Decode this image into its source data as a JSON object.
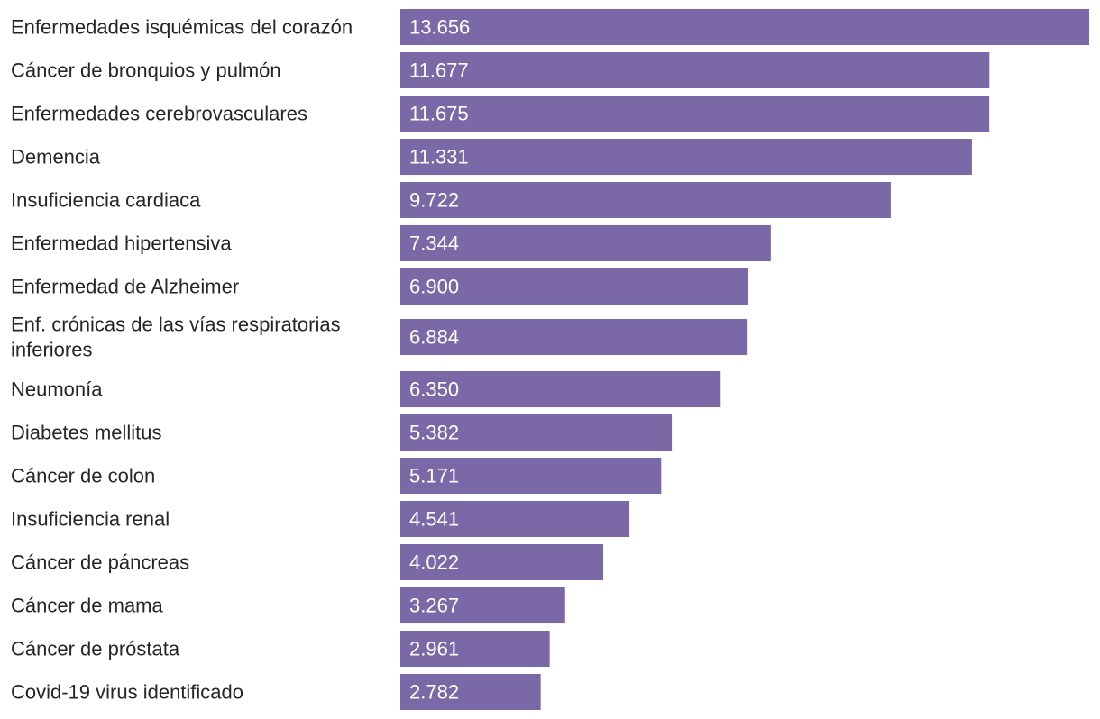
{
  "chart_data": {
    "type": "bar",
    "orientation": "horizontal",
    "categories": [
      "Enfermedades isquémicas del corazón",
      "Cáncer de bronquios y pulmón",
      "Enfermedades cerebrovasculares",
      "Demencia",
      "Insuficiencia cardiaca",
      "Enfermedad hipertensiva",
      "Enfermedad de Alzheimer",
      "Enf. crónicas de las vías respiratorias inferiores",
      "Neumonía",
      "Diabetes mellitus",
      "Cáncer de colon",
      "Insuficiencia renal",
      "Cáncer de páncreas",
      "Cáncer de mama",
      "Cáncer de próstata",
      "Covid-19 virus identificado"
    ],
    "category_lines": [
      [
        "Enfermedades isquémicas del corazón"
      ],
      [
        "Cáncer de bronquios y pulmón"
      ],
      [
        "Enfermedades cerebrovasculares"
      ],
      [
        "Demencia"
      ],
      [
        "Insuficiencia cardiaca"
      ],
      [
        "Enfermedad hipertensiva"
      ],
      [
        "Enfermedad de Alzheimer"
      ],
      [
        "Enf. crónicas de las vías respiratorias",
        "inferiores"
      ],
      [
        "Neumonía"
      ],
      [
        "Diabetes mellitus"
      ],
      [
        "Cáncer de colon"
      ],
      [
        "Insuficiencia renal"
      ],
      [
        "Cáncer de páncreas"
      ],
      [
        "Cáncer de mama"
      ],
      [
        "Cáncer de próstata"
      ],
      [
        "Covid-19 virus identificado"
      ]
    ],
    "values": [
      13656,
      11677,
      11675,
      11331,
      9722,
      7344,
      6900,
      6884,
      6350,
      5382,
      5171,
      4541,
      4022,
      3267,
      2961,
      2782
    ],
    "value_labels": [
      "13.656",
      "11.677",
      "11.675",
      "11.331",
      "9.722",
      "7.344",
      "6.900",
      "6.884",
      "6.350",
      "5.382",
      "5.171",
      "4.541",
      "4.022",
      "3.267",
      "2.961",
      "2.782"
    ],
    "xlim": [
      0,
      13656
    ],
    "bar_color": "#7b68a6",
    "title": "",
    "xlabel": "",
    "ylabel": ""
  }
}
